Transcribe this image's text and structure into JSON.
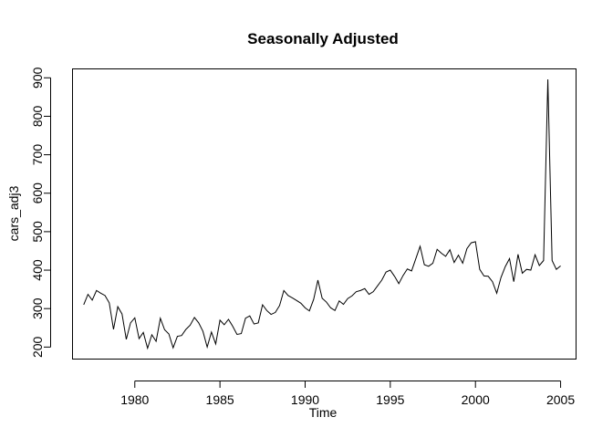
{
  "chart_data": {
    "type": "line",
    "title": "Seasonally Adjusted",
    "xlabel": "Time",
    "ylabel": "cars_adj3",
    "xlim": [
      1976.37,
      2005.88
    ],
    "ylim": [
      170,
      922
    ],
    "x_ticks": [
      1980,
      1985,
      1990,
      1995,
      2000,
      2005
    ],
    "y_ticks": [
      200,
      300,
      400,
      500,
      600,
      700,
      800,
      900
    ],
    "grid": false,
    "legend": "none",
    "line_color": "#000000",
    "series": [
      {
        "x": [
          1977.0,
          1977.25,
          1977.5,
          1977.75,
          1978.0,
          1978.25,
          1978.5,
          1978.75,
          1979.0,
          1979.25,
          1979.5,
          1979.75,
          1980.0,
          1980.25,
          1980.5,
          1980.75,
          1981.0,
          1981.25,
          1981.5,
          1981.75,
          1982.0,
          1982.25,
          1982.5,
          1982.75,
          1983.0,
          1983.25,
          1983.5,
          1983.75,
          1984.0,
          1984.25,
          1984.5,
          1984.75,
          1985.0,
          1985.25,
          1985.5,
          1985.75,
          1986.0,
          1986.25,
          1986.5,
          1986.75,
          1987.0,
          1987.25,
          1987.5,
          1987.75,
          1988.0,
          1988.25,
          1988.5,
          1988.75,
          1989.0,
          1989.25,
          1989.5,
          1989.75,
          1990.0,
          1990.25,
          1990.5,
          1990.75,
          1991.0,
          1991.25,
          1991.5,
          1991.75,
          1992.0,
          1992.25,
          1992.5,
          1992.75,
          1993.0,
          1993.25,
          1993.5,
          1993.75,
          1994.0,
          1994.25,
          1994.5,
          1994.75,
          1995.0,
          1995.25,
          1995.5,
          1995.75,
          1996.0,
          1996.25,
          1996.5,
          1996.75,
          1997.0,
          1997.25,
          1997.5,
          1997.75,
          1998.0,
          1998.25,
          1998.5,
          1998.75,
          1999.0,
          1999.25,
          1999.5,
          1999.75,
          2000.0,
          2000.25,
          2000.5,
          2000.75,
          2001.0,
          2001.25,
          2001.5,
          2001.75,
          2002.0,
          2002.25,
          2002.5,
          2002.75,
          2003.0,
          2003.25,
          2003.5,
          2003.75,
          2004.0,
          2004.25,
          2004.5,
          2004.75,
          2005.0
        ],
        "y": [
          310,
          337,
          322,
          347,
          340,
          334,
          315,
          246,
          305,
          286,
          220,
          263,
          276,
          222,
          238,
          197,
          232,
          215,
          275,
          245,
          234,
          198,
          228,
          230,
          246,
          257,
          277,
          263,
          241,
          200,
          239,
          208,
          270,
          258,
          272,
          254,
          233,
          235,
          275,
          281,
          260,
          263,
          310,
          295,
          285,
          290,
          308,
          347,
          334,
          328,
          321,
          314,
          302,
          294,
          324,
          374,
          327,
          317,
          302,
          295,
          320,
          311,
          326,
          333,
          344,
          347,
          352,
          337,
          344,
          359,
          374,
          395,
          400,
          384,
          365,
          386,
          403,
          398,
          430,
          462,
          414,
          410,
          418,
          454,
          444,
          436,
          453,
          420,
          439,
          418,
          456,
          471,
          474,
          402,
          385,
          384,
          370,
          340,
          381,
          409,
          430,
          370,
          441,
          392,
          402,
          400,
          440,
          412,
          425,
          896,
          425,
          402,
          411
        ]
      }
    ]
  }
}
